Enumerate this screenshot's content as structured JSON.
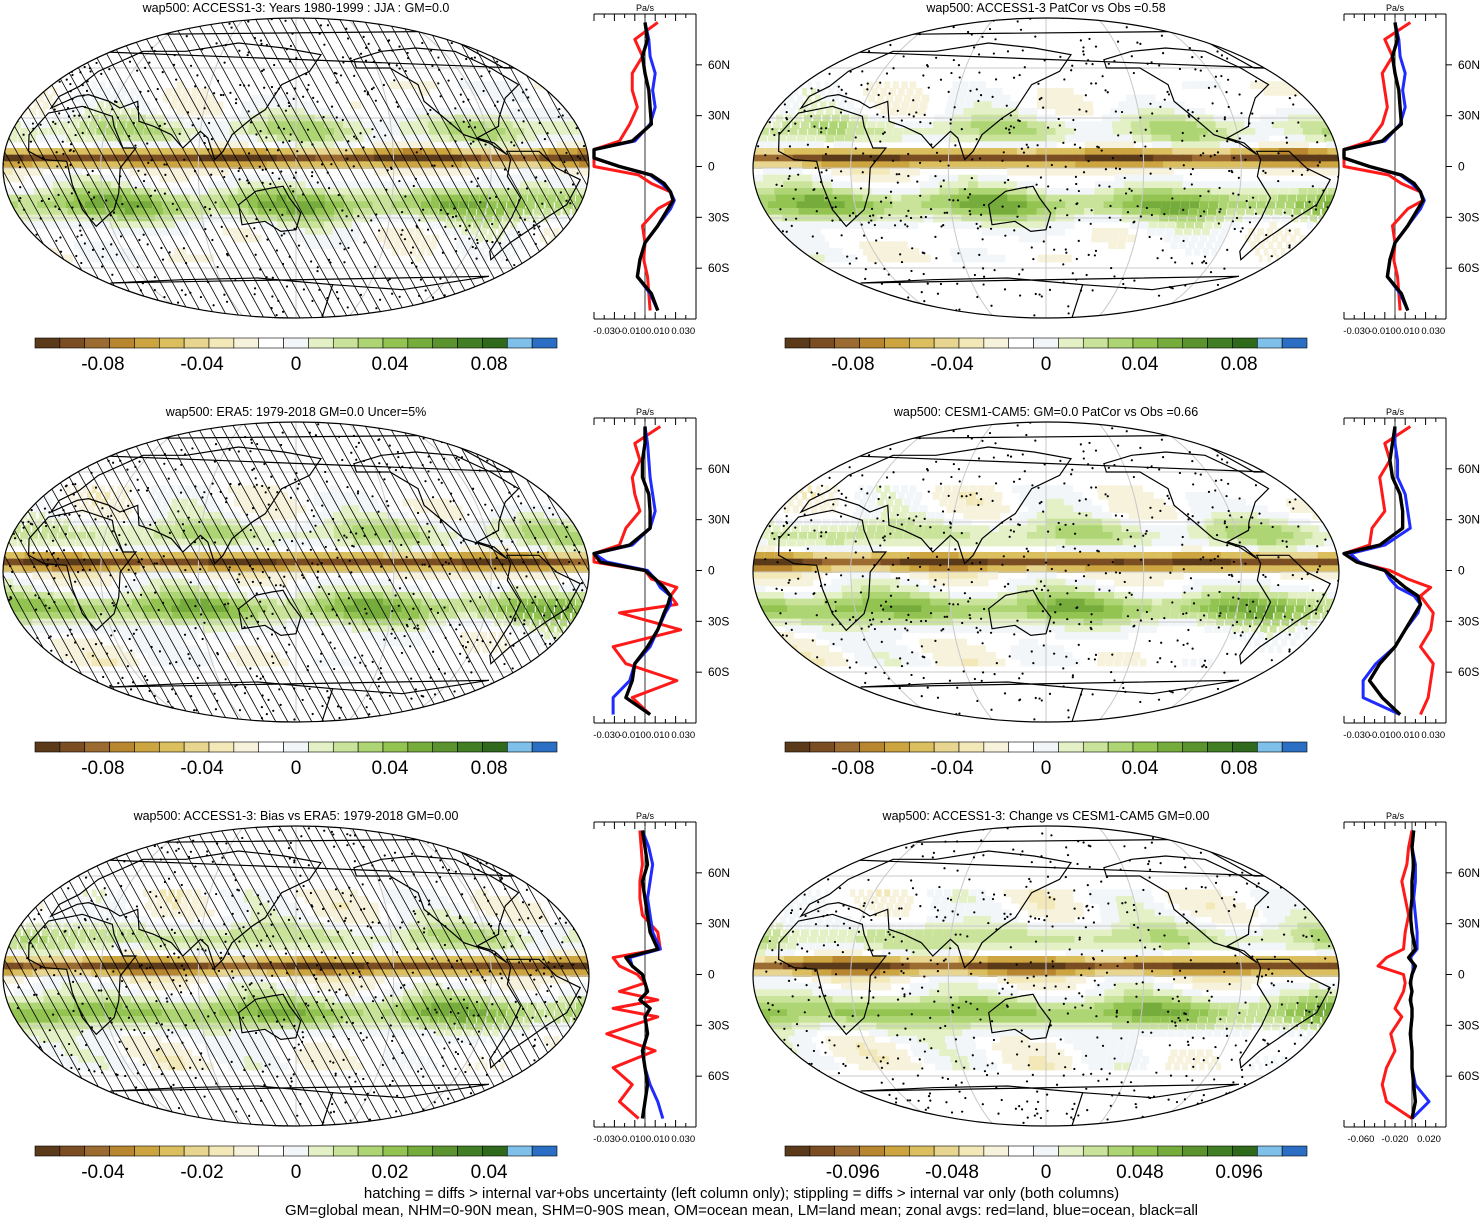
{
  "palette": [
    "#5b3a1a",
    "#7a4d22",
    "#9b6b32",
    "#b8862e",
    "#cda540",
    "#dbbe5e",
    "#e8d690",
    "#f3e8b8",
    "#f7f2dc",
    "#ffffff",
    "#f2f6f9",
    "#e4f0c6",
    "#c9e49a",
    "#aed574",
    "#93c452",
    "#76ac3c",
    "#5b932f",
    "#427e24",
    "#2f6a1c",
    "#7ec0ea",
    "#2b6fc4"
  ],
  "panels": [
    {
      "title": "wap500: ACCESS1-3: Years 1980-1999 : JJA : GM=0.0",
      "hatch": true,
      "cbar_labels": [
        "-0.08",
        "-0.04",
        "0",
        "0.04",
        "0.08"
      ],
      "zonal_ticks": [
        "-0.030",
        "-0.010",
        "0.010",
        "0.030"
      ],
      "zonal_unit": "Pa/s"
    },
    {
      "title": "wap500: ACCESS1-3 PatCor vs Obs =0.58",
      "hatch": false,
      "cbar_labels": [
        "-0.08",
        "-0.04",
        "0",
        "0.04",
        "0.08"
      ],
      "zonal_ticks": [
        "-0.030",
        "-0.010",
        "0.010",
        "0.030"
      ],
      "zonal_unit": "Pa/s"
    },
    {
      "title": "wap500: ERA5: 1979-2018 GM=0.0 Uncer=5%",
      "hatch": true,
      "cbar_labels": [
        "-0.08",
        "-0.04",
        "0",
        "0.04",
        "0.08"
      ],
      "zonal_ticks": [
        "-0.030",
        "-0.010",
        "0.010",
        "0.030"
      ],
      "zonal_unit": "Pa/s"
    },
    {
      "title": "wap500: CESM1-CAM5: GM=0.0 PatCor vs Obs =0.66",
      "hatch": false,
      "cbar_labels": [
        "-0.08",
        "-0.04",
        "0",
        "0.04",
        "0.08"
      ],
      "zonal_ticks": [
        "-0.030",
        "-0.010",
        "0.010",
        "0.030"
      ],
      "zonal_unit": "Pa/s"
    },
    {
      "title": "wap500: ACCESS1-3: Bias vs ERA5: 1979-2018 GM=0.00",
      "hatch": true,
      "cbar_labels": [
        "-0.04",
        "-0.02",
        "0",
        "0.02",
        "0.04"
      ],
      "zonal_ticks": [
        "-0.030",
        "-0.010",
        "0.010",
        "0.030"
      ],
      "zonal_unit": "Pa/s"
    },
    {
      "title": "wap500: ACCESS1-3: Change vs CESM1-CAM5 GM=0.00",
      "hatch": false,
      "cbar_labels": [
        "-0.096",
        "-0.048",
        "0",
        "0.048",
        "0.096"
      ],
      "zonal_ticks": [
        "-0.060",
        "-0.020",
        "0.020"
      ],
      "zonal_unit": "Pa/s"
    }
  ],
  "lat_labels": [
    "60N",
    "30N",
    "0",
    "30S",
    "60S"
  ],
  "footer": {
    "line1": "hatching = diffs > internal var+obs uncertainty (left column only); stippling = diffs > internal var only (both columns)",
    "line2": "GM=global mean, NHM=0-90N mean, SHM=0-90S mean, OM=ocean mean, LM=land mean; zonal avgs: red=land, blue=ocean, black=all"
  },
  "chart_data": [
    {
      "type": "heatmap",
      "title": "wap500: ACCESS1-3: Years 1980-1999 : JJA : GM=0.0",
      "colorbar_ticks": [
        -0.08,
        -0.04,
        0,
        0.04,
        0.08
      ],
      "zonal_mean": {
        "type": "line",
        "y_ticks": [
          "60N",
          "30N",
          "0",
          "30S",
          "60S"
        ],
        "x_ticks": [
          -0.03,
          -0.01,
          0.01,
          0.03
        ],
        "xlabel": "Pa/s",
        "lat": [
          85,
          75,
          65,
          55,
          45,
          35,
          25,
          15,
          10,
          5,
          0,
          -5,
          -10,
          -15,
          -20,
          -25,
          -35,
          -45,
          -55,
          -65,
          -75,
          -85
        ],
        "series": [
          {
            "color": "black",
            "values": [
              0.0,
              0.002,
              -0.002,
              0.0,
              0.003,
              0.004,
              0.005,
              -0.01,
              -0.04,
              -0.05,
              -0.02,
              0.005,
              0.015,
              0.02,
              0.022,
              0.018,
              0.01,
              0.0,
              -0.004,
              -0.006,
              0.005,
              0.01
            ]
          },
          {
            "color": "blue",
            "values": [
              0.0,
              0.003,
              0.004,
              0.008,
              0.006,
              0.008,
              0.004,
              -0.008,
              -0.04,
              -0.05,
              -0.02,
              0.004,
              0.013,
              0.02,
              0.023,
              0.02,
              0.01,
              0.0,
              -0.004,
              -0.006,
              0.004,
              0.01
            ]
          },
          {
            "color": "red",
            "values": [
              0.01,
              -0.008,
              -0.002,
              -0.01,
              -0.01,
              -0.006,
              -0.012,
              -0.02,
              -0.05,
              -0.04,
              -0.05,
              -0.005,
              0.005,
              0.02,
              0.022,
              0.01,
              -0.002,
              0.0,
              -0.001,
              0.002,
              0.003,
              0.004
            ]
          }
        ]
      }
    },
    {
      "type": "heatmap",
      "title": "wap500: ACCESS1-3 PatCor vs Obs =0.58",
      "colorbar_ticks": [
        -0.08,
        -0.04,
        0,
        0.04,
        0.08
      ],
      "zonal_mean": {
        "type": "line",
        "y_ticks": [
          "60N",
          "30N",
          "0",
          "30S",
          "60S"
        ],
        "x_ticks": [
          -0.03,
          -0.01,
          0.01,
          0.03
        ],
        "xlabel": "Pa/s",
        "lat": [
          85,
          75,
          65,
          55,
          45,
          35,
          25,
          15,
          10,
          5,
          0,
          -5,
          -10,
          -15,
          -20,
          -25,
          -35,
          -45,
          -55,
          -65,
          -75,
          -85
        ],
        "series": [
          {
            "color": "black",
            "values": [
              0.0,
              0.002,
              -0.002,
              0.0,
              0.003,
              0.004,
              0.005,
              -0.01,
              -0.04,
              -0.05,
              -0.02,
              0.005,
              0.015,
              0.02,
              0.022,
              0.018,
              0.01,
              0.0,
              -0.004,
              -0.006,
              0.005,
              0.01
            ]
          },
          {
            "color": "blue",
            "values": [
              0.0,
              0.003,
              0.004,
              0.008,
              0.006,
              0.008,
              0.004,
              -0.008,
              -0.04,
              -0.05,
              -0.02,
              0.004,
              0.013,
              0.02,
              0.023,
              0.02,
              0.01,
              0.0,
              -0.004,
              -0.006,
              0.004,
              0.01
            ]
          },
          {
            "color": "red",
            "values": [
              0.012,
              -0.008,
              -0.002,
              -0.01,
              -0.008,
              -0.006,
              -0.01,
              -0.02,
              -0.05,
              -0.04,
              -0.05,
              -0.005,
              0.005,
              0.02,
              0.022,
              0.01,
              -0.002,
              0.0,
              -0.001,
              0.002,
              0.003,
              0.004
            ]
          }
        ]
      }
    },
    {
      "type": "heatmap",
      "title": "wap500: ERA5: 1979-2018 GM=0.0 Uncer=5%",
      "colorbar_ticks": [
        -0.08,
        -0.04,
        0,
        0.04,
        0.08
      ],
      "zonal_mean": {
        "type": "line",
        "y_ticks": [
          "60N",
          "30N",
          "0",
          "30S",
          "60S"
        ],
        "x_ticks": [
          -0.03,
          -0.01,
          0.01,
          0.03
        ],
        "xlabel": "Pa/s",
        "lat": [
          85,
          75,
          65,
          55,
          45,
          35,
          25,
          15,
          10,
          5,
          0,
          -5,
          -10,
          -15,
          -20,
          -25,
          -35,
          -45,
          -55,
          -65,
          -75,
          -85
        ],
        "series": [
          {
            "color": "black",
            "values": [
              0.0,
              0.0,
              -0.002,
              -0.002,
              0.003,
              0.004,
              0.004,
              -0.012,
              -0.045,
              -0.035,
              0.0,
              0.008,
              0.015,
              0.02,
              0.018,
              0.015,
              0.01,
              0.002,
              -0.008,
              -0.01,
              -0.015,
              0.004
            ]
          },
          {
            "color": "blue",
            "values": [
              0.0,
              0.002,
              0.003,
              0.004,
              0.006,
              0.008,
              0.004,
              -0.01,
              -0.04,
              -0.03,
              0.002,
              0.008,
              0.012,
              0.02,
              0.02,
              0.016,
              0.01,
              0.004,
              -0.008,
              -0.012,
              -0.025,
              -0.025
            ]
          },
          {
            "color": "red",
            "values": [
              0.012,
              -0.008,
              -0.004,
              -0.01,
              -0.008,
              -0.004,
              -0.015,
              -0.02,
              -0.05,
              -0.04,
              0.0,
              0.005,
              0.025,
              0.02,
              0.025,
              -0.02,
              0.028,
              -0.025,
              -0.015,
              0.025,
              -0.01,
              0.004
            ]
          }
        ]
      }
    },
    {
      "type": "heatmap",
      "title": "wap500: CESM1-CAM5: GM=0.0 PatCor vs Obs =0.66",
      "colorbar_ticks": [
        -0.08,
        -0.04,
        0,
        0.04,
        0.08
      ],
      "zonal_mean": {
        "type": "line",
        "y_ticks": [
          "60N",
          "30N",
          "0",
          "30S",
          "60S"
        ],
        "x_ticks": [
          -0.03,
          -0.01,
          0.01,
          0.03
        ],
        "xlabel": "Pa/s",
        "lat": [
          85,
          75,
          65,
          55,
          45,
          35,
          25,
          15,
          10,
          5,
          0,
          -5,
          -10,
          -15,
          -20,
          -25,
          -35,
          -45,
          -55,
          -65,
          -75,
          -85
        ],
        "series": [
          {
            "color": "black",
            "values": [
              0.0,
              -0.002,
              -0.004,
              -0.002,
              0.004,
              0.006,
              0.006,
              -0.012,
              -0.04,
              -0.03,
              -0.008,
              0.0,
              0.008,
              0.018,
              0.02,
              0.016,
              0.008,
              0.0,
              -0.012,
              -0.02,
              -0.01,
              0.004
            ]
          },
          {
            "color": "blue",
            "values": [
              0.0,
              0.0,
              0.002,
              0.002,
              0.008,
              0.01,
              0.012,
              -0.008,
              -0.035,
              -0.028,
              -0.008,
              -0.004,
              0.002,
              0.015,
              0.02,
              0.018,
              0.008,
              0.0,
              -0.015,
              -0.025,
              -0.025,
              0.004
            ]
          },
          {
            "color": "red",
            "values": [
              0.012,
              -0.008,
              -0.004,
              -0.012,
              -0.01,
              -0.008,
              -0.018,
              -0.02,
              -0.04,
              -0.03,
              -0.004,
              0.01,
              0.028,
              0.02,
              0.025,
              0.03,
              0.028,
              0.02,
              0.03,
              0.028,
              0.026,
              0.02
            ]
          }
        ]
      }
    },
    {
      "type": "heatmap",
      "title": "wap500: ACCESS1-3: Bias vs ERA5: 1979-2018 GM=0.00",
      "colorbar_ticks": [
        -0.04,
        -0.02,
        0,
        0.02,
        0.04
      ],
      "zonal_mean": {
        "type": "line",
        "y_ticks": [
          "60N",
          "30N",
          "0",
          "30S",
          "60S"
        ],
        "x_ticks": [
          -0.03,
          -0.01,
          0.01,
          0.03
        ],
        "xlabel": "Pa/s",
        "lat": [
          85,
          75,
          65,
          55,
          45,
          35,
          25,
          15,
          10,
          5,
          0,
          -5,
          -10,
          -15,
          -20,
          -25,
          -35,
          -45,
          -55,
          -65,
          -75,
          -85
        ],
        "series": [
          {
            "color": "black",
            "values": [
              -0.002,
              0.0,
              0.002,
              -0.002,
              0.0,
              0.002,
              0.004,
              0.01,
              -0.015,
              -0.01,
              -0.002,
              0.0,
              0.002,
              -0.004,
              0.004,
              0.0,
              0.002,
              -0.002,
              0.0,
              0.002,
              0.0,
              -0.002
            ]
          },
          {
            "color": "blue",
            "values": [
              -0.002,
              0.003,
              0.006,
              0.004,
              0.002,
              0.004,
              0.006,
              0.012,
              -0.012,
              -0.01,
              -0.002,
              0.0,
              0.002,
              -0.004,
              0.004,
              0.0,
              0.002,
              -0.002,
              0.0,
              0.004,
              0.01,
              0.014
            ]
          },
          {
            "color": "red",
            "values": [
              -0.004,
              -0.003,
              -0.002,
              -0.004,
              -0.004,
              -0.002,
              0.01,
              0.012,
              -0.025,
              -0.02,
              -0.006,
              0.0,
              -0.02,
              0.01,
              -0.025,
              0.01,
              -0.03,
              0.008,
              -0.025,
              -0.01,
              -0.02,
              -0.005
            ]
          }
        ]
      }
    },
    {
      "type": "heatmap",
      "title": "wap500: ACCESS1-3: Change vs CESM1-CAM5 GM=0.00",
      "colorbar_ticks": [
        -0.096,
        -0.048,
        0,
        0.048,
        0.096
      ],
      "zonal_mean": {
        "type": "line",
        "y_ticks": [
          "60N",
          "30N",
          "0",
          "30S",
          "60S"
        ],
        "x_ticks": [
          -0.06,
          -0.02,
          0.02
        ],
        "xlabel": "Pa/s",
        "lat": [
          85,
          75,
          65,
          55,
          45,
          35,
          25,
          15,
          10,
          5,
          0,
          -5,
          -10,
          -15,
          -20,
          -25,
          -35,
          -45,
          -55,
          -65,
          -75,
          -85
        ],
        "series": [
          {
            "color": "black",
            "values": [
              0.002,
              0.0,
              0.002,
              0.0,
              0.0,
              -0.002,
              0.0,
              0.004,
              -0.004,
              0.004,
              0.0,
              -0.002,
              0.0,
              -0.002,
              0.0,
              0.0,
              -0.002,
              0.0,
              0.0,
              0.002,
              0.004,
              0.0
            ]
          },
          {
            "color": "blue",
            "values": [
              0.002,
              0.0,
              0.004,
              0.004,
              0.002,
              0.004,
              0.006,
              0.006,
              -0.002,
              0.002,
              0.0,
              -0.002,
              0.0,
              -0.002,
              0.0,
              0.0,
              -0.002,
              0.0,
              0.0,
              0.004,
              0.02,
              0.0
            ]
          },
          {
            "color": "red",
            "values": [
              0.0,
              -0.004,
              -0.006,
              -0.012,
              -0.008,
              -0.004,
              -0.008,
              -0.01,
              -0.03,
              -0.04,
              -0.01,
              -0.008,
              -0.01,
              -0.015,
              -0.02,
              -0.012,
              -0.025,
              -0.02,
              -0.03,
              -0.035,
              -0.03,
              0.0
            ]
          }
        ]
      }
    }
  ]
}
